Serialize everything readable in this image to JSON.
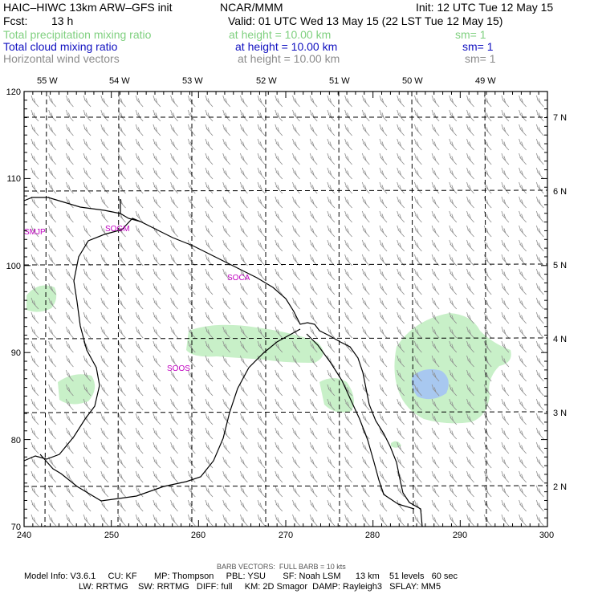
{
  "header": {
    "model_title": "HAIC–HIWC 13km ARW–GFS init",
    "org": "NCAR/MMM",
    "init": "Init: 12 UTC Tue 12 May 15",
    "fcst_label": "Fcst:",
    "fcst_value": "13 h",
    "valid": "Valid: 01 UTC Wed 13 May 15 (22 LST Tue 12 May 15)"
  },
  "fields": [
    {
      "name": "Total precipitation mixing ratio",
      "level": "at height = 10.00 km",
      "sm": "sm= 1",
      "color": "#7fd07f"
    },
    {
      "name": "Total cloud mixing ratio",
      "level": "at height = 10.00 km",
      "sm": "sm= 1",
      "color": "#1010c0"
    },
    {
      "name": "Horizontal wind vectors",
      "level": "at height = 10.00 km",
      "sm": "sm= 1",
      "color": "#8c8c8c"
    }
  ],
  "map": {
    "lon_labels": [
      "55 W",
      "54 W",
      "53 W",
      "52 W",
      "51 W",
      "50 W",
      "49 W"
    ],
    "lat_labels": [
      "7 N",
      "6 N",
      "5 N",
      "4 N",
      "3 N",
      "2 N"
    ],
    "x_ticks": [
      "240",
      "250",
      "260",
      "270",
      "280",
      "290",
      "300"
    ],
    "y_ticks": [
      "120",
      "110",
      "100",
      "90",
      "80",
      "70"
    ],
    "stations": [
      "SMJP",
      "SOGM",
      "SOCA",
      "SOOS"
    ],
    "colors": {
      "precip": "#c8f0c8",
      "cloud": "#a8c8f0",
      "coast": "#000000",
      "barb": "#8c8c8c",
      "station": "#c000c0"
    }
  },
  "footer": {
    "barb_note": "BARB VECTORS:  FULL BARB = 10 kts",
    "model_info_1": "Model Info: V3.6.1     CU: KF       MP: Thompson     PBL: YSU       SF: Noah LSM      13 km    51 levels   60 sec",
    "model_info_2": "LW: RRTMG    SW: RRTMG   DIFF: full     KM: 2D Smagor  DAMP: Rayleigh3   SFLAY: MM5"
  }
}
